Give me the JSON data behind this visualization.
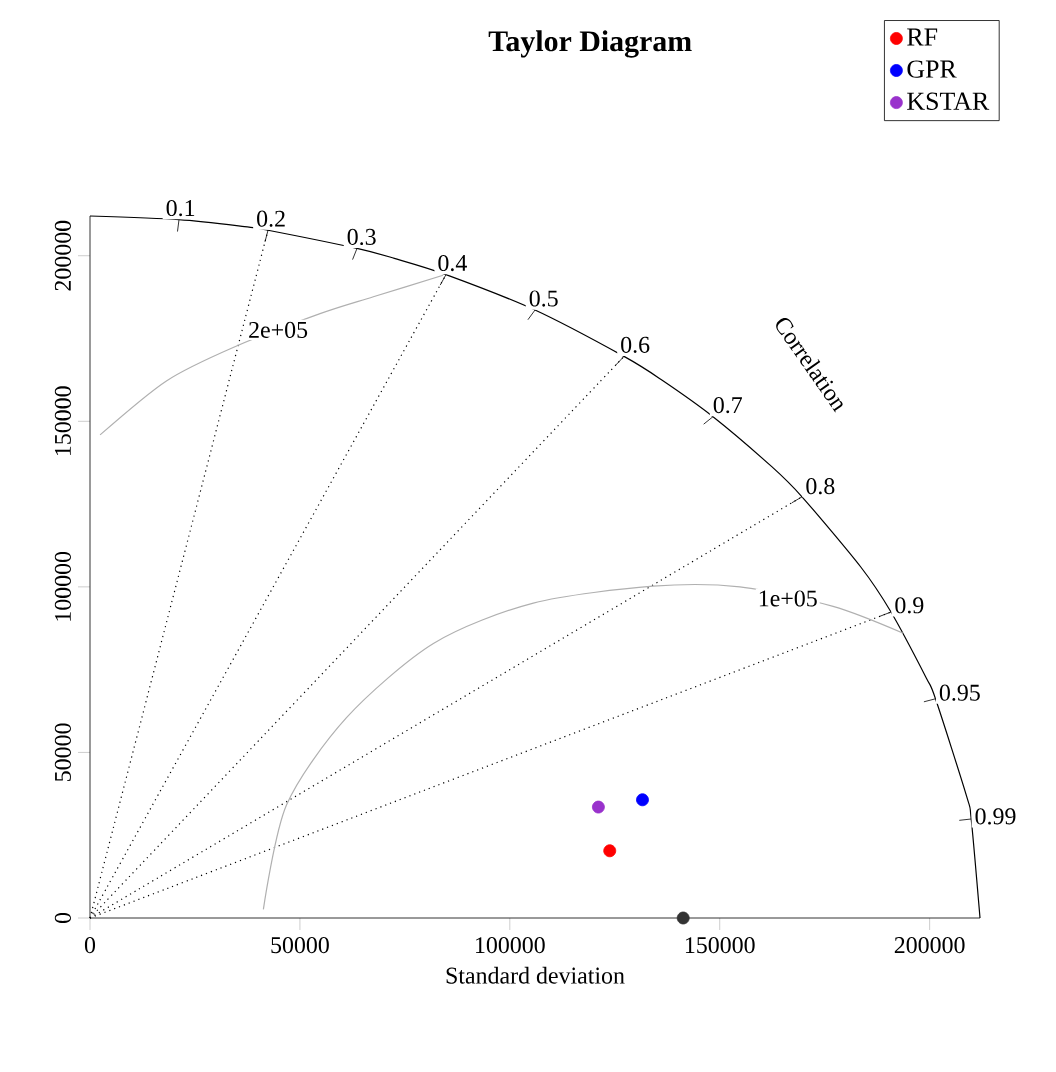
{
  "chart_data": {
    "type": "scatter",
    "title": "Taylor Diagram",
    "xlabel": "Standard deviation",
    "xlim": [
      0,
      212000
    ],
    "ylim": [
      0,
      212000
    ],
    "xticks": [
      0,
      50000,
      100000,
      150000,
      200000
    ],
    "yticks": [
      0,
      50000,
      100000,
      150000,
      200000
    ],
    "legend": "top right",
    "series": [
      {
        "name": "RF",
        "color": "#ff0000",
        "x": [
          123800
        ],
        "values": [
          20300
        ]
      },
      {
        "name": "GPR",
        "color": "#0000ff",
        "x": [
          131600
        ],
        "values": [
          35700
        ]
      },
      {
        "name": "KSTAR",
        "color": "#9932cc",
        "x": [
          121100
        ],
        "values": [
          33500
        ]
      },
      {
        "color": "#333333",
        "x": [
          141300
        ],
        "values": [
          0
        ]
      },
      {
        "type": "line",
        "marker": "none",
        "color": "#000000",
        "line_style": "solid",
        "x": [
          0,
          21200,
          36800,
          42400,
          63600,
          72500,
          84800,
          106000,
          127200,
          136300,
          148400,
          162400,
          169600,
          183600,
          190800,
          199200,
          201400,
          208800,
          209900,
          212000
        ],
        "values": [
          212000,
          210900,
          208800,
          207700,
          202200,
          199200,
          194300,
          183600,
          169600,
          162400,
          151400,
          136300,
          127200,
          106000,
          92400,
          72500,
          66200,
          36800,
          29900,
          0
        ]
      },
      {
        "type": "line",
        "marker": "none",
        "color": "#000000",
        "line_style": "dotted",
        "x": [
          0,
          42400
        ],
        "values": [
          0,
          207700
        ]
      },
      {
        "type": "line",
        "marker": "none",
        "color": "#000000",
        "line_style": "dotted",
        "x": [
          0,
          84800
        ],
        "values": [
          0,
          194300
        ]
      },
      {
        "type": "line",
        "marker": "none",
        "color": "#000000",
        "line_style": "dotted",
        "x": [
          0,
          127200
        ],
        "values": [
          0,
          169600
        ]
      },
      {
        "type": "line",
        "marker": "none",
        "color": "#000000",
        "line_style": "dotted",
        "x": [
          0,
          169600
        ],
        "values": [
          0,
          127200
        ]
      },
      {
        "type": "line",
        "marker": "none",
        "color": "#000000",
        "line_style": "dotted",
        "x": [
          0,
          190800
        ],
        "values": [
          0,
          92400
        ]
      },
      {
        "type": "line",
        "marker": "none",
        "color": "#b0b0b0",
        "line_style": "solid",
        "x": [
          41300,
          46800,
          61100,
          81800,
          105600,
          134100,
          154800,
          177000,
          193700
        ],
        "values": [
          2600,
          34100,
          60500,
          82900,
          95100,
          100200,
          100000,
          94100,
          86000
        ]
      },
      {
        "type": "line",
        "marker": "none",
        "color": "#b0b0b0",
        "line_style": "solid",
        "x": [
          2400,
          18200,
          34100,
          54800,
          67500,
          84100
        ],
        "values": [
          145900,
          162200,
          172300,
          182500,
          187600,
          194100
        ]
      }
    ],
    "annotations": [
      {
        "text": "0.1",
        "x": 21200,
        "y": 210900
      },
      {
        "text": "0.2",
        "x": 42400,
        "y": 207700
      },
      {
        "text": "0.3",
        "x": 63600,
        "y": 202200
      },
      {
        "text": "0.4",
        "x": 84800,
        "y": 194300
      },
      {
        "text": "0.5",
        "x": 106000,
        "y": 183600
      },
      {
        "text": "0.6",
        "x": 127200,
        "y": 169600
      },
      {
        "text": "0.7",
        "x": 148400,
        "y": 151400
      },
      {
        "text": "0.8",
        "x": 169600,
        "y": 127200
      },
      {
        "text": "0.9",
        "x": 190800,
        "y": 92400
      },
      {
        "text": "0.95",
        "x": 201400,
        "y": 66200
      },
      {
        "text": "0.99",
        "x": 209900,
        "y": 29900
      },
      "Correlation",
      {
        "text": "2e+05",
        "x": 44800,
        "y": 177600
      },
      {
        "text": "1e+05",
        "x": 166200,
        "y": 96500
      }
    ]
  }
}
